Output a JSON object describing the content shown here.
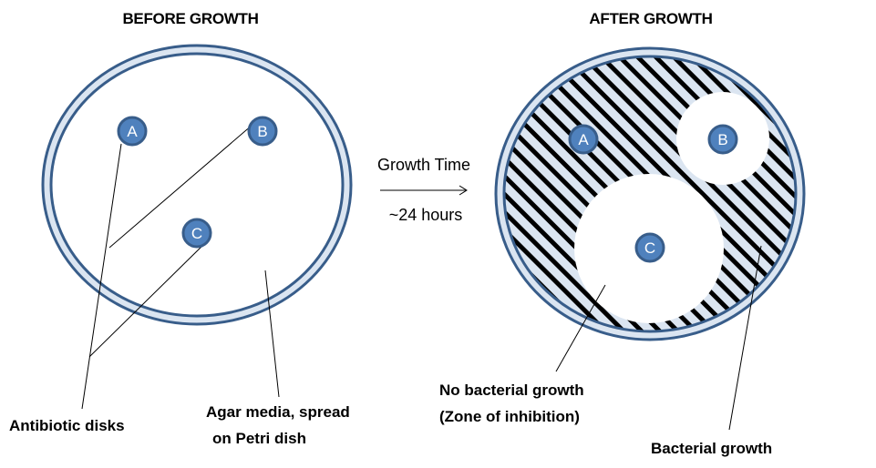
{
  "before": {
    "title": "BEFORE GROWTH",
    "disks": [
      {
        "id": "A",
        "label": "A"
      },
      {
        "id": "B",
        "label": "B"
      },
      {
        "id": "C",
        "label": "C"
      }
    ],
    "antibiotic_label": "Antibiotic disks",
    "agar_label_line1": "Agar media, spread",
    "agar_label_line2": "on Petri dish"
  },
  "middle": {
    "growth_label": "Growth Time",
    "time_label": "~24 hours"
  },
  "after": {
    "title": "AFTER GROWTH",
    "disks": [
      {
        "id": "A",
        "label": "A"
      },
      {
        "id": "B",
        "label": "B"
      },
      {
        "id": "C",
        "label": "C"
      }
    ],
    "no_growth_line1": "No bacterial growth",
    "no_growth_line2": "(Zone of inhibition)",
    "bacterial_label": "Bacterial growth"
  },
  "colors": {
    "dish_outer_fill": "#dbe5f1",
    "dish_stroke": "#385d8a",
    "disk_fill": "#4f81bd",
    "disk_stroke": "#385d8a",
    "hatch_line": "#000000",
    "hatch_bg": "#dbe5f1"
  }
}
